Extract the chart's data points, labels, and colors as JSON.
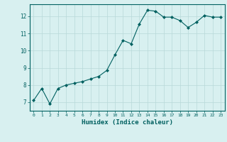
{
  "x": [
    0,
    1,
    2,
    3,
    4,
    5,
    6,
    7,
    8,
    9,
    10,
    11,
    12,
    13,
    14,
    15,
    16,
    17,
    18,
    19,
    20,
    21,
    22,
    23
  ],
  "y": [
    7.1,
    7.8,
    6.9,
    7.8,
    8.0,
    8.1,
    8.2,
    8.35,
    8.5,
    8.85,
    9.75,
    10.6,
    10.4,
    11.55,
    12.35,
    12.3,
    11.95,
    11.95,
    11.75,
    11.35,
    11.65,
    12.05,
    11.95,
    11.95
  ],
  "line_color": "#006060",
  "marker": "D",
  "marker_size": 2,
  "bg_color": "#d8f0f0",
  "grid_color": "#b8d8d8",
  "xlabel": "Humidex (Indice chaleur)",
  "ylim": [
    6.5,
    12.7
  ],
  "xlim": [
    -0.5,
    23.5
  ],
  "yticks": [
    7,
    8,
    9,
    10,
    11,
    12
  ],
  "xticks": [
    0,
    1,
    2,
    3,
    4,
    5,
    6,
    7,
    8,
    9,
    10,
    11,
    12,
    13,
    14,
    15,
    16,
    17,
    18,
    19,
    20,
    21,
    22,
    23
  ],
  "tick_color": "#006060",
  "label_color": "#006060",
  "spine_color": "#006060"
}
